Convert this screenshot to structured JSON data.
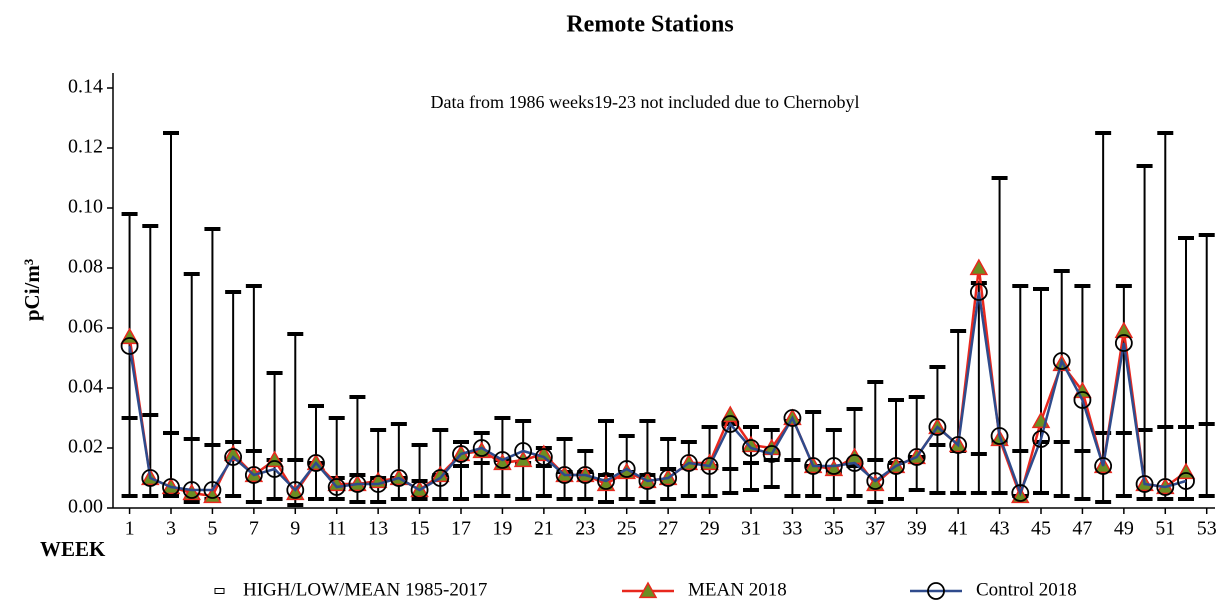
{
  "chart_data": {
    "type": "line",
    "title": "Remote Stations",
    "annotation": "Data from 1986 weeks19-23  not included due to Chernobyl",
    "x_label": "WEEK",
    "y_label": "pCi/m³",
    "x": [
      1,
      2,
      3,
      4,
      5,
      6,
      7,
      8,
      9,
      10,
      11,
      12,
      13,
      14,
      15,
      16,
      17,
      18,
      19,
      20,
      21,
      22,
      23,
      24,
      25,
      26,
      27,
      28,
      29,
      30,
      31,
      32,
      33,
      34,
      35,
      36,
      37,
      38,
      39,
      40,
      41,
      42,
      43,
      44,
      45,
      46,
      47,
      48,
      49,
      50,
      51,
      52,
      53
    ],
    "xlim": [
      0.2,
      53.4
    ],
    "xticks": [
      1,
      3,
      5,
      7,
      9,
      11,
      13,
      15,
      17,
      19,
      21,
      23,
      25,
      27,
      29,
      31,
      33,
      35,
      37,
      39,
      41,
      43,
      45,
      47,
      49,
      51,
      53
    ],
    "ylim": [
      0,
      0.145
    ],
    "yticks": [
      {
        "value": 0,
        "label": "0.00"
      },
      0.02,
      0.04,
      0.06,
      0.08,
      {
        "value": 0.1,
        "label": "0.10"
      },
      0.12,
      0.14
    ],
    "series": [
      {
        "name": "HIGH/LOW/MEAN 1985-2017",
        "style": "hilo",
        "color": "#000000",
        "high": [
          0.098,
          0.094,
          0.125,
          0.078,
          0.093,
          0.072,
          0.074,
          0.045,
          0.058,
          0.034,
          0.03,
          0.037,
          0.026,
          0.028,
          0.021,
          0.026,
          0.022,
          0.025,
          0.03,
          0.029,
          0.02,
          0.023,
          0.019,
          0.029,
          0.024,
          0.029,
          0.023,
          0.022,
          0.027,
          0.028,
          0.027,
          0.026,
          0.029,
          0.032,
          0.026,
          0.033,
          0.042,
          0.036,
          0.037,
          0.047,
          0.059,
          0.075,
          0.11,
          0.074,
          0.073,
          0.079,
          0.074,
          0.125,
          0.074,
          0.114,
          0.125,
          0.09,
          0.091
        ],
        "low": [
          0.004,
          0.004,
          0.004,
          0.002,
          0.003,
          0.004,
          0.002,
          0.003,
          0.001,
          0.003,
          0.003,
          0.002,
          0.002,
          0.003,
          0.003,
          0.003,
          0.003,
          0.004,
          0.004,
          0.003,
          0.004,
          0.003,
          0.003,
          0.002,
          0.003,
          0.002,
          0.003,
          0.004,
          0.004,
          0.005,
          0.006,
          0.007,
          0.004,
          0.004,
          0.003,
          0.004,
          0.002,
          0.003,
          0.006,
          0.005,
          0.005,
          0.005,
          0.005,
          0.004,
          0.005,
          0.004,
          0.003,
          0.002,
          0.004,
          0.003,
          0.003,
          0.003,
          0.004
        ],
        "values": [
          0.03,
          0.031,
          0.025,
          0.023,
          0.021,
          0.022,
          0.019,
          0.016,
          0.016,
          0.015,
          0.01,
          0.011,
          0.01,
          0.01,
          0.009,
          0.011,
          0.014,
          0.015,
          0.016,
          0.015,
          0.014,
          0.012,
          0.012,
          0.011,
          0.012,
          0.011,
          0.013,
          0.014,
          0.014,
          0.013,
          0.015,
          0.016,
          0.016,
          0.014,
          0.012,
          0.014,
          0.016,
          0.015,
          0.017,
          0.021,
          0.019,
          0.018,
          0.022,
          0.019,
          0.022,
          0.022,
          0.019,
          0.025,
          0.025,
          0.026,
          0.027,
          0.027,
          0.028
        ]
      },
      {
        "name": "MEAN 2018",
        "style": "line",
        "marker": "triangle",
        "color": "#e8281e",
        "marker_fill": "#6b8e23",
        "values": [
          0.057,
          0.01,
          0.007,
          0.005,
          0.004,
          0.018,
          0.011,
          0.016,
          0.005,
          0.015,
          0.008,
          0.008,
          0.009,
          0.01,
          0.006,
          0.011,
          0.018,
          0.019,
          0.015,
          0.016,
          0.018,
          0.011,
          0.011,
          0.008,
          0.012,
          0.009,
          0.01,
          0.015,
          0.015,
          0.031,
          0.021,
          0.02,
          0.03,
          0.014,
          0.013,
          0.017,
          0.008,
          0.014,
          0.017,
          0.027,
          0.021,
          0.08,
          0.023,
          0.004,
          0.029,
          0.048,
          0.039,
          0.014,
          0.059,
          0.008,
          0.007,
          0.012,
          null
        ]
      },
      {
        "name": "Control 2018",
        "style": "line",
        "marker": "circle",
        "color": "#2f4b8c",
        "marker_fill": "none",
        "values": [
          0.054,
          0.01,
          0.007,
          0.006,
          0.006,
          0.017,
          0.011,
          0.013,
          0.006,
          0.015,
          0.007,
          0.008,
          0.008,
          0.01,
          0.006,
          0.01,
          0.018,
          0.02,
          0.016,
          0.019,
          0.017,
          0.011,
          0.011,
          0.009,
          0.013,
          0.009,
          0.01,
          0.015,
          0.014,
          0.028,
          0.02,
          0.018,
          0.03,
          0.014,
          0.014,
          0.015,
          0.009,
          0.014,
          0.017,
          0.027,
          0.021,
          0.072,
          0.024,
          0.005,
          0.023,
          0.049,
          0.036,
          0.014,
          0.055,
          0.008,
          0.007,
          0.009,
          null
        ]
      }
    ]
  }
}
